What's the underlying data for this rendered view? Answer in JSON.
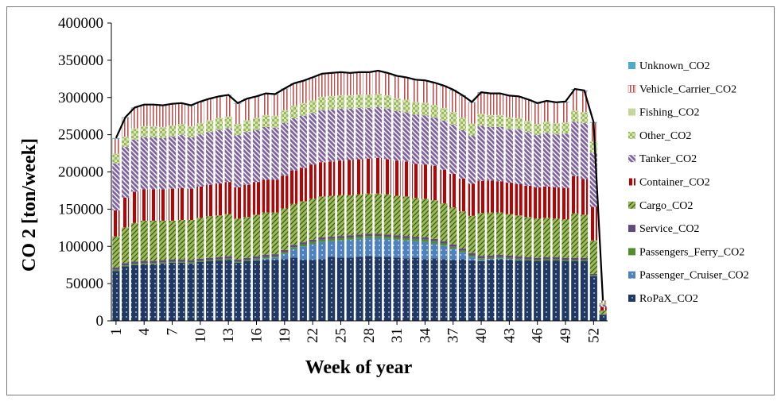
{
  "chart_data": {
    "type": "bar",
    "stacked": true,
    "xlabel": "Week of year",
    "ylabel": "CO 2 [ton/week]",
    "ylim": [
      0,
      400000
    ],
    "yticks": [
      "0",
      "50000",
      "100000",
      "150000",
      "200000",
      "250000",
      "300000",
      "350000",
      "400000"
    ],
    "xticks": [
      1,
      4,
      7,
      10,
      13,
      16,
      19,
      22,
      25,
      28,
      31,
      34,
      37,
      40,
      43,
      46,
      49,
      52
    ],
    "categories": [
      1,
      2,
      3,
      4,
      5,
      6,
      7,
      8,
      9,
      10,
      11,
      12,
      13,
      14,
      15,
      16,
      17,
      18,
      19,
      20,
      21,
      22,
      23,
      24,
      25,
      26,
      27,
      28,
      29,
      30,
      31,
      32,
      33,
      34,
      35,
      36,
      37,
      38,
      39,
      40,
      41,
      42,
      43,
      44,
      45,
      46,
      47,
      48,
      49,
      50,
      51,
      52,
      53
    ],
    "legend_position": "right",
    "grid": false,
    "series": [
      {
        "name": "RoPaX_CO2",
        "color": "#1f3864",
        "pattern": "dots",
        "values": [
          67000,
          73000,
          75000,
          76000,
          76000,
          77000,
          78000,
          78000,
          77000,
          79000,
          80000,
          81000,
          82000,
          78000,
          80000,
          81000,
          82000,
          82000,
          83000,
          85000,
          82000,
          82000,
          83000,
          86000,
          85000,
          85000,
          86000,
          87000,
          86000,
          86000,
          85000,
          84000,
          85000,
          83000,
          84000,
          83000,
          82000,
          83000,
          81000,
          80000,
          82000,
          83000,
          82000,
          81000,
          81000,
          80000,
          81000,
          81000,
          80000,
          80000,
          80000,
          60000,
          8000
        ]
      },
      {
        "name": "Passenger_Cruiser_CO2",
        "color": "#4f81bd",
        "pattern": "dots",
        "values": [
          0,
          0,
          0,
          0,
          0,
          0,
          0,
          0,
          0,
          0,
          0,
          0,
          0,
          0,
          0,
          1000,
          2000,
          3000,
          7000,
          12000,
          18000,
          21000,
          23000,
          21000,
          23000,
          24000,
          24000,
          24000,
          25000,
          24000,
          24000,
          24000,
          22000,
          23000,
          20000,
          18000,
          15000,
          9000,
          5000,
          2000,
          1000,
          1000,
          1000,
          1000,
          0,
          0,
          0,
          0,
          0,
          0,
          0,
          0,
          0
        ]
      },
      {
        "name": "Passengers_Ferry_CO2",
        "color": "#4e8f2c",
        "pattern": "solid",
        "values": [
          1500,
          1500,
          1500,
          1500,
          1500,
          1500,
          1500,
          1500,
          1500,
          1500,
          1500,
          1500,
          1500,
          1500,
          1500,
          1500,
          1500,
          1500,
          2000,
          2000,
          2500,
          3000,
          3000,
          3000,
          3000,
          3000,
          3000,
          3000,
          3000,
          3000,
          3000,
          3000,
          3000,
          3000,
          3000,
          3000,
          2500,
          2000,
          2000,
          2000,
          1500,
          1500,
          1500,
          1500,
          1500,
          1500,
          1500,
          1500,
          1500,
          1500,
          1500,
          1000,
          300
        ]
      },
      {
        "name": "Service_CO2",
        "color": "#604a7b",
        "pattern": "solid",
        "values": [
          3000,
          3000,
          3000,
          3000,
          3000,
          3000,
          3000,
          3000,
          3000,
          3000,
          3000,
          3000,
          3000,
          3000,
          3000,
          3000,
          3000,
          3000,
          3000,
          3000,
          3000,
          3000,
          3000,
          3000,
          3000,
          3000,
          3000,
          3000,
          3000,
          3000,
          3000,
          3000,
          3000,
          3000,
          3000,
          3000,
          3000,
          3000,
          3000,
          3000,
          3000,
          3000,
          3000,
          3000,
          3000,
          3000,
          3000,
          3000,
          3000,
          3000,
          3000,
          2000,
          500
        ]
      },
      {
        "name": "Cargo_CO2",
        "color": "#9bbb59",
        "pattern": "diagonal",
        "values": [
          42000,
          48000,
          52000,
          54000,
          54000,
          53000,
          52000,
          53000,
          54000,
          55000,
          56000,
          56000,
          57000,
          55000,
          55000,
          56000,
          57000,
          56000,
          56000,
          55000,
          55000,
          55000,
          55000,
          55000,
          55000,
          54000,
          54000,
          54000,
          54000,
          54000,
          53000,
          53000,
          52000,
          52000,
          52000,
          51000,
          50000,
          50000,
          50000,
          58000,
          58000,
          57000,
          56000,
          55000,
          54000,
          53000,
          53000,
          52000,
          52000,
          60000,
          58000,
          45000,
          5000
        ]
      },
      {
        "name": "Container_CO2",
        "color": "#c00000",
        "pattern": "vertical-white",
        "values": [
          35000,
          40000,
          42000,
          42000,
          42000,
          42000,
          43000,
          43000,
          42000,
          42000,
          42000,
          43000,
          43000,
          42000,
          43000,
          44000,
          44000,
          44000,
          44000,
          45000,
          45000,
          46000,
          46000,
          46000,
          46000,
          47000,
          47000,
          47000,
          48000,
          47000,
          47000,
          47000,
          46000,
          46000,
          46000,
          45000,
          45000,
          44000,
          43000,
          43000,
          43000,
          42000,
          42000,
          42000,
          42000,
          42000,
          42000,
          42000,
          42000,
          50000,
          48000,
          45000,
          5000
        ]
      },
      {
        "name": "Tanker_CO2",
        "color": "#8064a2",
        "pattern": "dense-diagonal",
        "values": [
          63000,
          68000,
          70000,
          70000,
          70000,
          69000,
          70000,
          71000,
          69000,
          70000,
          71000,
          72000,
          72000,
          70000,
          71000,
          70000,
          71000,
          70000,
          71000,
          70000,
          70000,
          69000,
          70000,
          70000,
          70000,
          69000,
          69000,
          68000,
          68000,
          68000,
          67000,
          66000,
          66000,
          66000,
          65000,
          66000,
          66000,
          65000,
          65000,
          74000,
          72000,
          73000,
          72000,
          74000,
          72000,
          70000,
          72000,
          71000,
          73000,
          73000,
          75000,
          73000,
          3000
        ]
      },
      {
        "name": "Other_CO2",
        "color": "#9bbb59",
        "pattern": "checker",
        "values": [
          12000,
          13000,
          14000,
          14000,
          14000,
          14000,
          14000,
          14000,
          14000,
          14000,
          15000,
          15000,
          15000,
          14000,
          15000,
          15000,
          15000,
          15000,
          16000,
          16000,
          16000,
          16000,
          17000,
          17000,
          17000,
          17000,
          17000,
          17000,
          17000,
          17000,
          16000,
          16000,
          16000,
          16000,
          16000,
          16000,
          16000,
          16000,
          15000,
          15000,
          15000,
          15000,
          15000,
          14000,
          14000,
          14000,
          14000,
          14000,
          14000,
          14000,
          14000,
          14000,
          2000
        ]
      },
      {
        "name": "Fishing_CO2",
        "color": "#c3d69b",
        "pattern": "solid",
        "values": [
          1000,
          1000,
          1000,
          1000,
          1000,
          1000,
          1000,
          1000,
          1000,
          1000,
          1000,
          1000,
          1000,
          1000,
          1000,
          1000,
          1000,
          1000,
          1000,
          1000,
          1000,
          1000,
          1000,
          1000,
          1000,
          1000,
          1000,
          1000,
          1000,
          1000,
          1000,
          1000,
          1000,
          1000,
          1000,
          1000,
          1000,
          1000,
          1000,
          1000,
          1000,
          1000,
          1000,
          1000,
          1000,
          1000,
          1000,
          1000,
          1000,
          1000,
          1000,
          1000,
          200
        ]
      },
      {
        "name": "Vehicle_Carrier_CO2",
        "color": "#c0504d",
        "pattern": "vertical-thin",
        "values": [
          20000,
          25000,
          27000,
          28000,
          28000,
          28000,
          28000,
          27000,
          27000,
          28000,
          28000,
          28000,
          28000,
          27000,
          28000,
          28000,
          28000,
          28000,
          28000,
          29000,
          29000,
          30000,
          30000,
          30000,
          30000,
          29000,
          29000,
          29000,
          30000,
          29000,
          29000,
          29000,
          29000,
          29000,
          29000,
          29000,
          29000,
          29000,
          28000,
          28000,
          28000,
          28000,
          28000,
          28000,
          28000,
          27000,
          27000,
          27000,
          27000,
          28000,
          28000,
          25000,
          3000
        ]
      },
      {
        "name": "Unknown_CO2",
        "color": "#4bacc6",
        "pattern": "solid",
        "values": [
          1000,
          1000,
          1000,
          1000,
          1000,
          1000,
          1000,
          1000,
          1000,
          1000,
          1000,
          1000,
          1000,
          1000,
          1000,
          1000,
          1000,
          1000,
          1000,
          1000,
          1000,
          1000,
          1000,
          1000,
          1000,
          1000,
          1000,
          1000,
          1000,
          1000,
          1000,
          1000,
          1000,
          1000,
          1000,
          1000,
          1000,
          1000,
          1000,
          1000,
          1000,
          1000,
          1000,
          1000,
          1000,
          1000,
          1000,
          1000,
          1000,
          1000,
          1000,
          1000,
          300
        ]
      }
    ]
  }
}
